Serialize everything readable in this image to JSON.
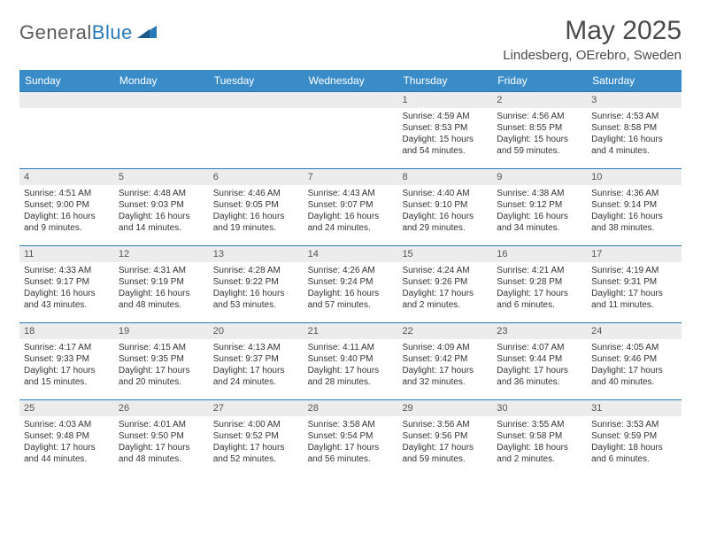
{
  "logo": {
    "text_gray": "General",
    "text_blue": "Blue"
  },
  "title": "May 2025",
  "location": "Lindesberg, OErebro, Sweden",
  "colors": {
    "header_bg": "#3a8cc9",
    "header_text": "#ffffff",
    "daynum_bg": "#ececec",
    "border": "#2978b8",
    "text": "#333333",
    "logo_gray": "#5a5a5a",
    "logo_blue": "#2978b8"
  },
  "days_of_week": [
    "Sunday",
    "Monday",
    "Tuesday",
    "Wednesday",
    "Thursday",
    "Friday",
    "Saturday"
  ],
  "weeks": [
    [
      {
        "n": "",
        "sr": "",
        "ss": "",
        "dl1": "",
        "dl2": ""
      },
      {
        "n": "",
        "sr": "",
        "ss": "",
        "dl1": "",
        "dl2": ""
      },
      {
        "n": "",
        "sr": "",
        "ss": "",
        "dl1": "",
        "dl2": ""
      },
      {
        "n": "",
        "sr": "",
        "ss": "",
        "dl1": "",
        "dl2": ""
      },
      {
        "n": "1",
        "sr": "Sunrise: 4:59 AM",
        "ss": "Sunset: 8:53 PM",
        "dl1": "Daylight: 15 hours",
        "dl2": "and 54 minutes."
      },
      {
        "n": "2",
        "sr": "Sunrise: 4:56 AM",
        "ss": "Sunset: 8:55 PM",
        "dl1": "Daylight: 15 hours",
        "dl2": "and 59 minutes."
      },
      {
        "n": "3",
        "sr": "Sunrise: 4:53 AM",
        "ss": "Sunset: 8:58 PM",
        "dl1": "Daylight: 16 hours",
        "dl2": "and 4 minutes."
      }
    ],
    [
      {
        "n": "4",
        "sr": "Sunrise: 4:51 AM",
        "ss": "Sunset: 9:00 PM",
        "dl1": "Daylight: 16 hours",
        "dl2": "and 9 minutes."
      },
      {
        "n": "5",
        "sr": "Sunrise: 4:48 AM",
        "ss": "Sunset: 9:03 PM",
        "dl1": "Daylight: 16 hours",
        "dl2": "and 14 minutes."
      },
      {
        "n": "6",
        "sr": "Sunrise: 4:46 AM",
        "ss": "Sunset: 9:05 PM",
        "dl1": "Daylight: 16 hours",
        "dl2": "and 19 minutes."
      },
      {
        "n": "7",
        "sr": "Sunrise: 4:43 AM",
        "ss": "Sunset: 9:07 PM",
        "dl1": "Daylight: 16 hours",
        "dl2": "and 24 minutes."
      },
      {
        "n": "8",
        "sr": "Sunrise: 4:40 AM",
        "ss": "Sunset: 9:10 PM",
        "dl1": "Daylight: 16 hours",
        "dl2": "and 29 minutes."
      },
      {
        "n": "9",
        "sr": "Sunrise: 4:38 AM",
        "ss": "Sunset: 9:12 PM",
        "dl1": "Daylight: 16 hours",
        "dl2": "and 34 minutes."
      },
      {
        "n": "10",
        "sr": "Sunrise: 4:36 AM",
        "ss": "Sunset: 9:14 PM",
        "dl1": "Daylight: 16 hours",
        "dl2": "and 38 minutes."
      }
    ],
    [
      {
        "n": "11",
        "sr": "Sunrise: 4:33 AM",
        "ss": "Sunset: 9:17 PM",
        "dl1": "Daylight: 16 hours",
        "dl2": "and 43 minutes."
      },
      {
        "n": "12",
        "sr": "Sunrise: 4:31 AM",
        "ss": "Sunset: 9:19 PM",
        "dl1": "Daylight: 16 hours",
        "dl2": "and 48 minutes."
      },
      {
        "n": "13",
        "sr": "Sunrise: 4:28 AM",
        "ss": "Sunset: 9:22 PM",
        "dl1": "Daylight: 16 hours",
        "dl2": "and 53 minutes."
      },
      {
        "n": "14",
        "sr": "Sunrise: 4:26 AM",
        "ss": "Sunset: 9:24 PM",
        "dl1": "Daylight: 16 hours",
        "dl2": "and 57 minutes."
      },
      {
        "n": "15",
        "sr": "Sunrise: 4:24 AM",
        "ss": "Sunset: 9:26 PM",
        "dl1": "Daylight: 17 hours",
        "dl2": "and 2 minutes."
      },
      {
        "n": "16",
        "sr": "Sunrise: 4:21 AM",
        "ss": "Sunset: 9:28 PM",
        "dl1": "Daylight: 17 hours",
        "dl2": "and 6 minutes."
      },
      {
        "n": "17",
        "sr": "Sunrise: 4:19 AM",
        "ss": "Sunset: 9:31 PM",
        "dl1": "Daylight: 17 hours",
        "dl2": "and 11 minutes."
      }
    ],
    [
      {
        "n": "18",
        "sr": "Sunrise: 4:17 AM",
        "ss": "Sunset: 9:33 PM",
        "dl1": "Daylight: 17 hours",
        "dl2": "and 15 minutes."
      },
      {
        "n": "19",
        "sr": "Sunrise: 4:15 AM",
        "ss": "Sunset: 9:35 PM",
        "dl1": "Daylight: 17 hours",
        "dl2": "and 20 minutes."
      },
      {
        "n": "20",
        "sr": "Sunrise: 4:13 AM",
        "ss": "Sunset: 9:37 PM",
        "dl1": "Daylight: 17 hours",
        "dl2": "and 24 minutes."
      },
      {
        "n": "21",
        "sr": "Sunrise: 4:11 AM",
        "ss": "Sunset: 9:40 PM",
        "dl1": "Daylight: 17 hours",
        "dl2": "and 28 minutes."
      },
      {
        "n": "22",
        "sr": "Sunrise: 4:09 AM",
        "ss": "Sunset: 9:42 PM",
        "dl1": "Daylight: 17 hours",
        "dl2": "and 32 minutes."
      },
      {
        "n": "23",
        "sr": "Sunrise: 4:07 AM",
        "ss": "Sunset: 9:44 PM",
        "dl1": "Daylight: 17 hours",
        "dl2": "and 36 minutes."
      },
      {
        "n": "24",
        "sr": "Sunrise: 4:05 AM",
        "ss": "Sunset: 9:46 PM",
        "dl1": "Daylight: 17 hours",
        "dl2": "and 40 minutes."
      }
    ],
    [
      {
        "n": "25",
        "sr": "Sunrise: 4:03 AM",
        "ss": "Sunset: 9:48 PM",
        "dl1": "Daylight: 17 hours",
        "dl2": "and 44 minutes."
      },
      {
        "n": "26",
        "sr": "Sunrise: 4:01 AM",
        "ss": "Sunset: 9:50 PM",
        "dl1": "Daylight: 17 hours",
        "dl2": "and 48 minutes."
      },
      {
        "n": "27",
        "sr": "Sunrise: 4:00 AM",
        "ss": "Sunset: 9:52 PM",
        "dl1": "Daylight: 17 hours",
        "dl2": "and 52 minutes."
      },
      {
        "n": "28",
        "sr": "Sunrise: 3:58 AM",
        "ss": "Sunset: 9:54 PM",
        "dl1": "Daylight: 17 hours",
        "dl2": "and 56 minutes."
      },
      {
        "n": "29",
        "sr": "Sunrise: 3:56 AM",
        "ss": "Sunset: 9:56 PM",
        "dl1": "Daylight: 17 hours",
        "dl2": "and 59 minutes."
      },
      {
        "n": "30",
        "sr": "Sunrise: 3:55 AM",
        "ss": "Sunset: 9:58 PM",
        "dl1": "Daylight: 18 hours",
        "dl2": "and 2 minutes."
      },
      {
        "n": "31",
        "sr": "Sunrise: 3:53 AM",
        "ss": "Sunset: 9:59 PM",
        "dl1": "Daylight: 18 hours",
        "dl2": "and 6 minutes."
      }
    ]
  ]
}
